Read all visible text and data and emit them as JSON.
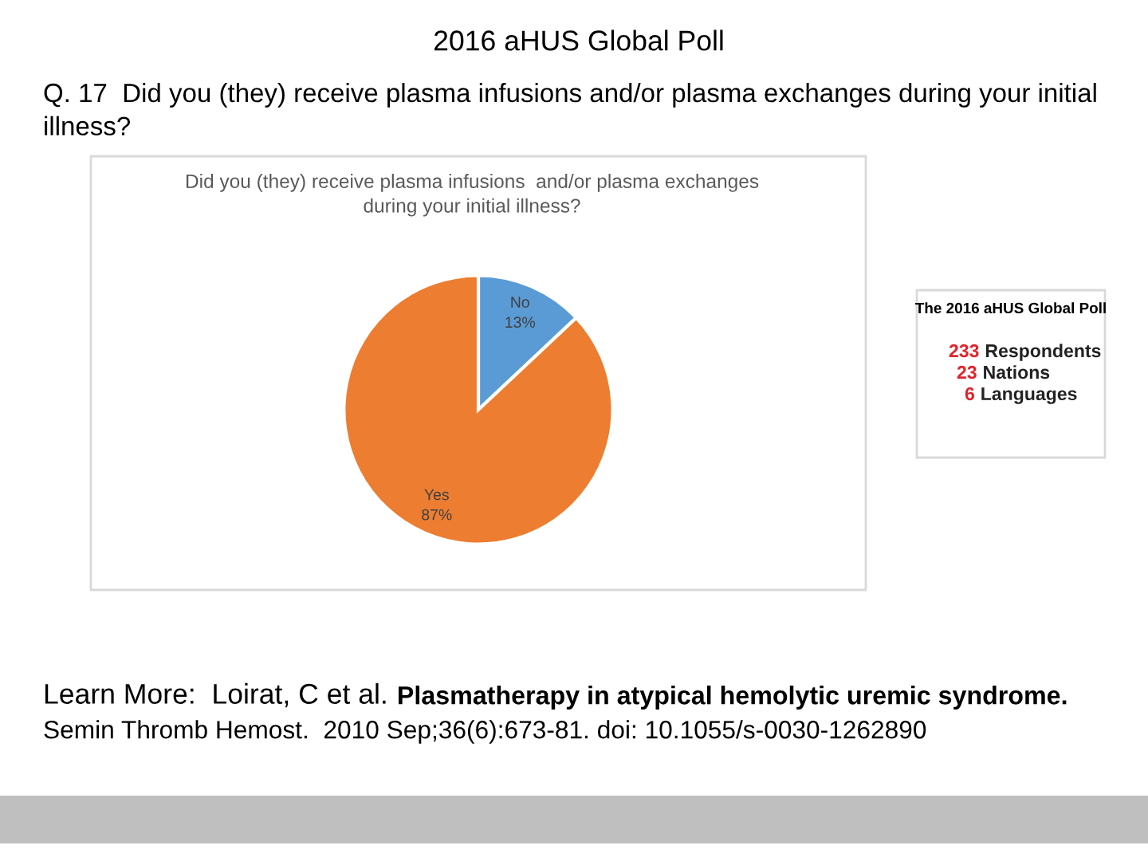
{
  "chart_data": {
    "type": "pie",
    "title": "2016 aHUS Global Poll",
    "subtitle": "Q. 17  Did you (they) receive plasma infusions and/or plasma exchanges during your initial illness?",
    "categories": [
      "No",
      "Yes"
    ],
    "values": [
      13,
      87
    ],
    "colors": [
      "#5b9bd5",
      "#ed7d31"
    ],
    "value_labels": [
      "13%",
      "87%"
    ],
    "annotations": [
      "Did you (they) receive plasma infusions  and/or plasma exchanges during your initial illness?",
      "Learn More:  Loirat, C et al.",
      "Plasmatherapy in atypical hemolytic uremic syndrome.",
      "Semin Thromb Hemost.  2010 Sep;36(6):673-81. doi: 10.1055/s-0030-1262890",
      "The 2016 aHUS Global Poll",
      "233 Respondents",
      "23 Nations",
      "6 Languages"
    ]
  }
}
